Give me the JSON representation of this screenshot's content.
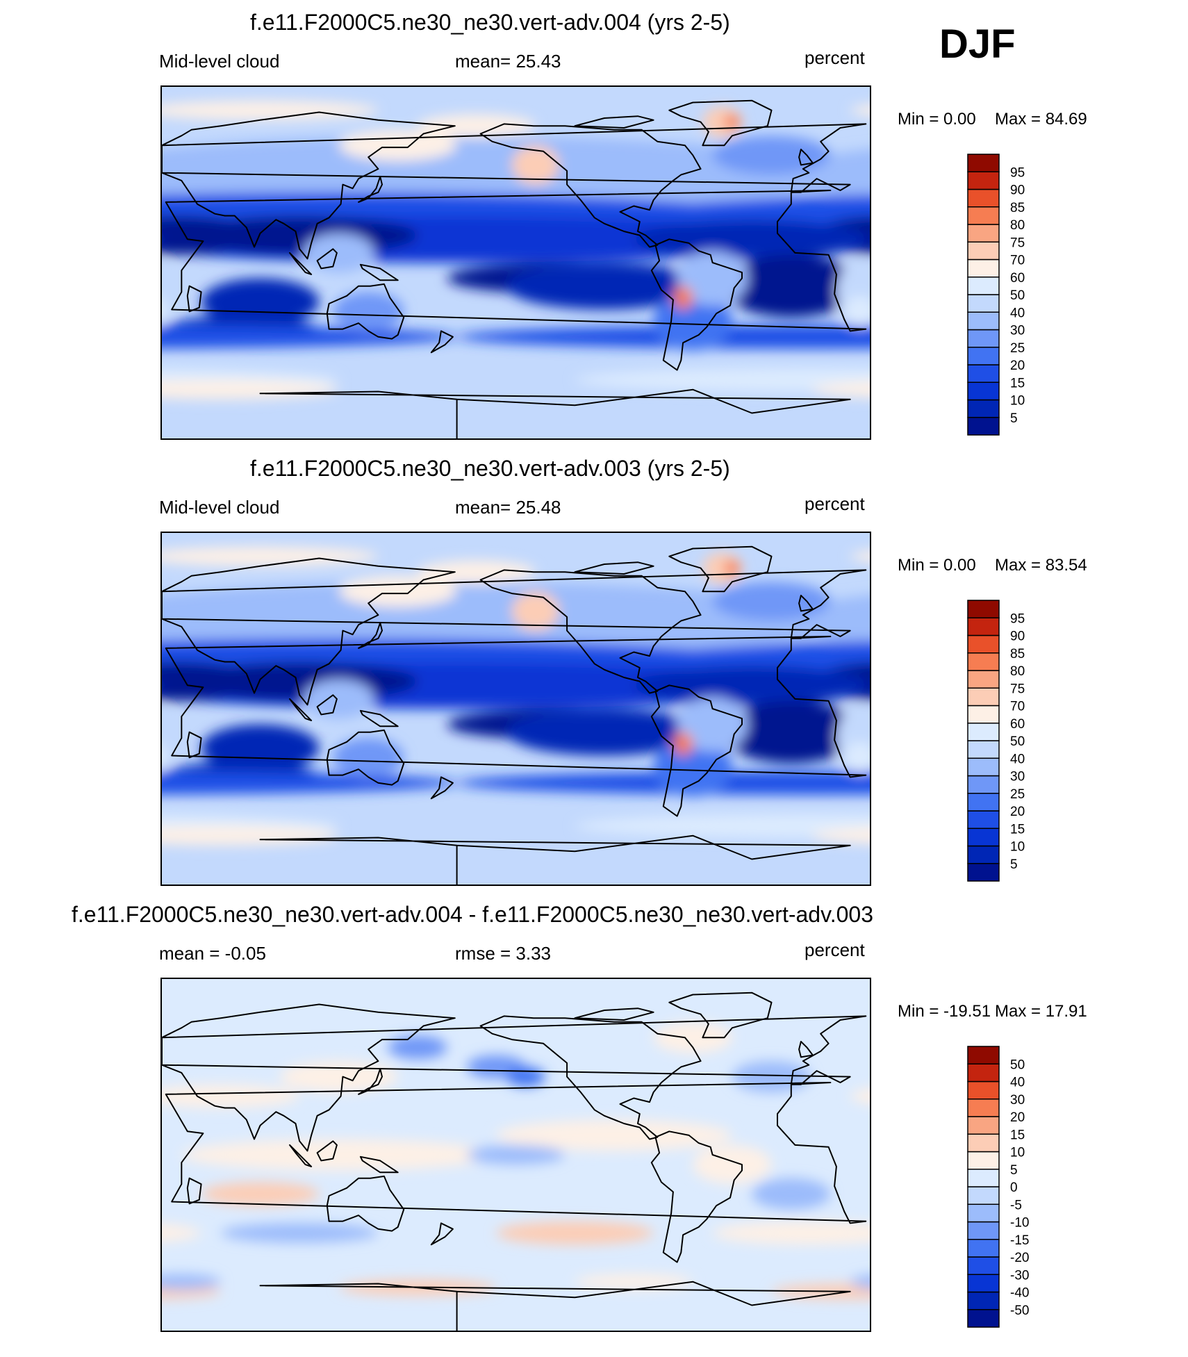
{
  "season": "DJF",
  "chart_data": [
    {
      "type": "heatmap",
      "title": "f.e11.F2000C5.ne30_ne30.vert-adv.004 (yrs 2-5)",
      "left_label": "Mid-level cloud",
      "center_label": "mean=  25.43",
      "units": "percent",
      "min_label": "Min =    0.00",
      "max_label": "Max =  84.69",
      "min": 0.0,
      "max": 84.69,
      "mean": 25.43,
      "colorbar_levels": [
        "5",
        "10",
        "15",
        "20",
        "25",
        "30",
        "40",
        "50",
        "60",
        "70",
        "75",
        "80",
        "85",
        "90",
        "95"
      ],
      "colorbar_colors": [
        "#00128f",
        "#0026b5",
        "#0835d4",
        "#1f4fe6",
        "#4173f2",
        "#6f97f7",
        "#9cbcfb",
        "#c3d9fd",
        "#dcebfe",
        "#fdf0e6",
        "#fccdb6",
        "#f9a582",
        "#f67d52",
        "#e9512a",
        "#c4240f",
        "#8f0a00"
      ]
    },
    {
      "type": "heatmap",
      "title": "f.e11.F2000C5.ne30_ne30.vert-adv.003 (yrs 2-5)",
      "left_label": "Mid-level cloud",
      "center_label": "mean=  25.48",
      "units": "percent",
      "min_label": "Min =    0.00",
      "max_label": "Max =  83.54",
      "min": 0.0,
      "max": 83.54,
      "mean": 25.48,
      "colorbar_levels": [
        "5",
        "10",
        "15",
        "20",
        "25",
        "30",
        "40",
        "50",
        "60",
        "70",
        "75",
        "80",
        "85",
        "90",
        "95"
      ],
      "colorbar_colors": [
        "#00128f",
        "#0026b5",
        "#0835d4",
        "#1f4fe6",
        "#4173f2",
        "#6f97f7",
        "#9cbcfb",
        "#c3d9fd",
        "#dcebfe",
        "#fdf0e6",
        "#fccdb6",
        "#f9a582",
        "#f67d52",
        "#e9512a",
        "#c4240f",
        "#8f0a00"
      ]
    },
    {
      "type": "heatmap",
      "title": "f.e11.F2000C5.ne30_ne30.vert-adv.004 - f.e11.F2000C5.ne30_ne30.vert-adv.003",
      "left_label": "mean =  -0.05",
      "center_label": "rmse =   3.33",
      "units": "percent",
      "min_label": "Min = -19.51",
      "max_label": "Max =  17.91",
      "min": -19.51,
      "max": 17.91,
      "mean": -0.05,
      "rmse": 3.33,
      "colorbar_levels": [
        "-50",
        "-40",
        "-30",
        "-20",
        "-15",
        "-10",
        "-5",
        "0",
        "5",
        "10",
        "15",
        "20",
        "30",
        "40",
        "50"
      ],
      "colorbar_colors": [
        "#00128f",
        "#0026b5",
        "#0835d4",
        "#1f4fe6",
        "#4173f2",
        "#6f97f7",
        "#9cbcfb",
        "#c3d9fd",
        "#dcebfe",
        "#fdf0e6",
        "#fccdb6",
        "#f9a582",
        "#f67d52",
        "#e9512a",
        "#c4240f",
        "#8f0a00"
      ]
    }
  ]
}
